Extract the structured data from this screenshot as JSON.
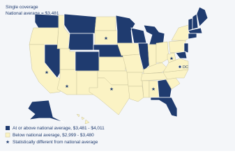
{
  "header": {
    "title": "Single coverage",
    "subtitle": "National average = $3,481"
  },
  "labels": {
    "dc": "DC"
  },
  "legend": [
    {
      "label": "At or above national average, $3,481 - $4,011",
      "color": "#1f3b6f"
    },
    {
      "label": "Below national average, $2,999 - $3,480",
      "color": "#fbf3c4"
    },
    {
      "label": "Statistically different from national average"
    }
  ]
}
